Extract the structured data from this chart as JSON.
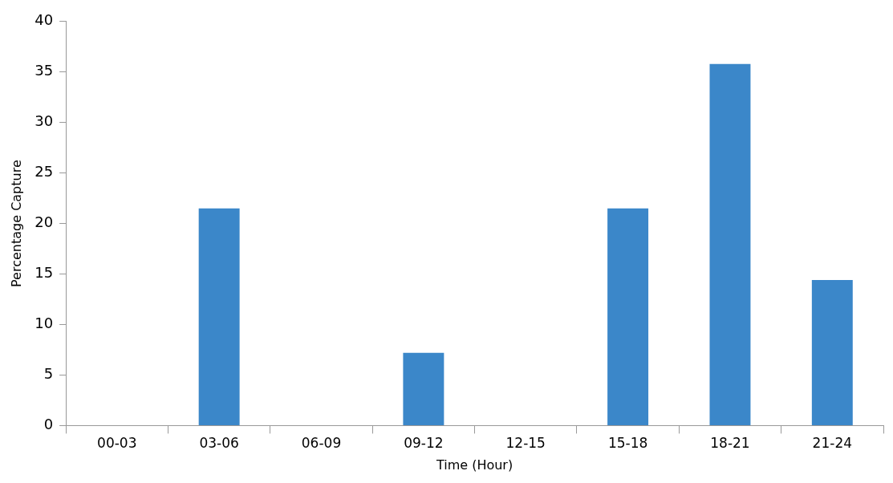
{
  "chart_data": {
    "type": "bar",
    "xlabel": "Time (Hour)",
    "ylabel": "Percentage Capture",
    "categories": [
      "00-03",
      "03-06",
      "06-09",
      "09-12",
      "12-15",
      "15-18",
      "18-21",
      "21-24"
    ],
    "values": [
      0,
      21.5,
      0,
      7.2,
      0,
      21.5,
      35.8,
      14.4
    ],
    "color": "#3b87c9",
    "ylim": [
      0,
      40
    ],
    "yticks": [
      0,
      5,
      10,
      15,
      20,
      25,
      30,
      35,
      40
    ],
    "grid": false,
    "legend": false
  }
}
